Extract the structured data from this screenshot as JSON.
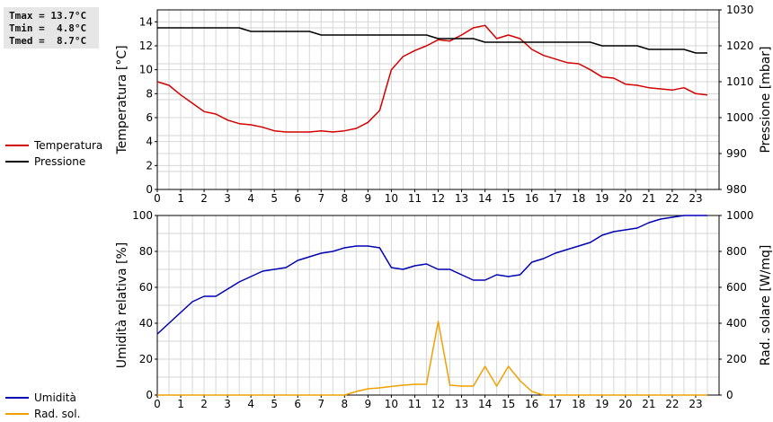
{
  "stats": {
    "tmax": "Tmax = 13.7°C",
    "tmin": "Tmin =  4.8°C",
    "tmed": "Tmed =  8.7°C"
  },
  "legend_top": [
    {
      "label": "Temperatura",
      "color": "#d40000"
    },
    {
      "label": "Pressione",
      "color": "#000000"
    }
  ],
  "legend_bottom": [
    {
      "label": "Umidità",
      "color": "#0000b4"
    },
    {
      "label": "Rad. sol.",
      "color": "#f0a000"
    }
  ],
  "chart_data": [
    {
      "type": "line",
      "xlabel": "",
      "ylabel": "Temperatura [°C]",
      "y2label": "Pressione [mbar]",
      "xlim": [
        0,
        24
      ],
      "ylim": [
        0,
        15
      ],
      "y2lim": [
        980,
        1030
      ],
      "xticks": [
        "0",
        "1",
        "2",
        "3",
        "4",
        "5",
        "6",
        "7",
        "8",
        "9",
        "10",
        "11",
        "12",
        "13",
        "14",
        "15",
        "16",
        "17",
        "18",
        "19",
        "20",
        "21",
        "22",
        "23"
      ],
      "yticks": [
        "0",
        "2",
        "4",
        "6",
        "8",
        "10",
        "12",
        "14"
      ],
      "y2ticks": [
        "980",
        "990",
        "1000",
        "1010",
        "1020",
        "1030"
      ],
      "grid": true,
      "series": [
        {
          "name": "Temperatura",
          "color": "#d40000",
          "axis": "left",
          "x": [
            0,
            0.5,
            1,
            1.5,
            2,
            2.5,
            3,
            3.5,
            4,
            4.5,
            5,
            5.5,
            6,
            6.5,
            7,
            7.5,
            8,
            8.5,
            9,
            9.5,
            10,
            10.5,
            11,
            11.5,
            12,
            12.5,
            13,
            13.5,
            14,
            14.5,
            15,
            15.5,
            16,
            16.5,
            17,
            17.5,
            18,
            18.5,
            19,
            19.5,
            20,
            20.5,
            21,
            21.5,
            22,
            22.5,
            23,
            23.5
          ],
          "values": [
            9.0,
            8.7,
            7.9,
            7.2,
            6.5,
            6.3,
            5.8,
            5.5,
            5.4,
            5.2,
            4.9,
            4.8,
            4.8,
            4.8,
            4.9,
            4.8,
            4.9,
            5.1,
            5.6,
            6.6,
            10.0,
            11.1,
            11.6,
            12.0,
            12.5,
            12.4,
            12.9,
            13.5,
            13.7,
            12.6,
            12.9,
            12.6,
            11.7,
            11.2,
            10.9,
            10.6,
            10.5,
            10.0,
            9.4,
            9.3,
            8.8,
            8.7,
            8.5,
            8.4,
            8.3,
            8.5,
            8.0,
            7.9
          ]
        },
        {
          "name": "Pressione",
          "color": "#000000",
          "axis": "right",
          "x": [
            0,
            3.5,
            4,
            6.5,
            7,
            11.5,
            12,
            13.5,
            14,
            18.5,
            19,
            20.5,
            21,
            22.5,
            23,
            23.5
          ],
          "values": [
            1025,
            1025,
            1024,
            1024,
            1023,
            1023,
            1022,
            1022,
            1021,
            1021,
            1020,
            1020,
            1019,
            1019,
            1018,
            1018
          ]
        }
      ]
    },
    {
      "type": "line",
      "xlabel": "",
      "ylabel": "Umidità relativa [%]",
      "y2label": "Rad. solare [W/mq]",
      "xlim": [
        0,
        24
      ],
      "ylim": [
        0,
        100
      ],
      "y2lim": [
        0,
        1000
      ],
      "xticks": [
        "0",
        "1",
        "2",
        "3",
        "4",
        "5",
        "6",
        "7",
        "8",
        "9",
        "10",
        "11",
        "12",
        "13",
        "14",
        "15",
        "16",
        "17",
        "18",
        "19",
        "20",
        "21",
        "22",
        "23"
      ],
      "yticks": [
        "0",
        "20",
        "40",
        "60",
        "80",
        "100"
      ],
      "y2ticks": [
        "0",
        "200",
        "400",
        "600",
        "800",
        "1000"
      ],
      "grid": true,
      "series": [
        {
          "name": "Umidità",
          "color": "#0000b4",
          "axis": "left",
          "x": [
            0,
            0.5,
            1,
            1.5,
            2,
            2.5,
            3,
            3.5,
            4,
            4.5,
            5,
            5.5,
            6,
            6.5,
            7,
            7.5,
            8,
            8.5,
            9,
            9.5,
            10,
            10.5,
            11,
            11.5,
            12,
            12.5,
            13,
            13.5,
            14,
            14.5,
            15,
            15.5,
            16,
            16.5,
            17,
            17.5,
            18,
            18.5,
            19,
            19.5,
            20,
            20.5,
            21,
            21.5,
            22,
            22.5,
            23,
            23.5
          ],
          "values": [
            34,
            40,
            46,
            52,
            55,
            55,
            59,
            63,
            66,
            69,
            70,
            71,
            75,
            77,
            79,
            80,
            82,
            83,
            83,
            82,
            71,
            70,
            72,
            73,
            70,
            70,
            67,
            64,
            64,
            67,
            66,
            67,
            74,
            76,
            79,
            81,
            83,
            85,
            89,
            91,
            92,
            93,
            96,
            98,
            99,
            100,
            100,
            100
          ]
        },
        {
          "name": "Rad. sol.",
          "color": "#f0a000",
          "axis": "right",
          "x": [
            0,
            8,
            8.5,
            9,
            9.5,
            10,
            10.5,
            11,
            11.5,
            12,
            12.5,
            13,
            13.5,
            14,
            14.5,
            15,
            15.5,
            16,
            16.5,
            23.5
          ],
          "values": [
            0,
            0,
            20,
            35,
            40,
            48,
            55,
            60,
            60,
            410,
            55,
            50,
            50,
            160,
            50,
            160,
            80,
            20,
            0,
            0
          ]
        }
      ]
    }
  ]
}
